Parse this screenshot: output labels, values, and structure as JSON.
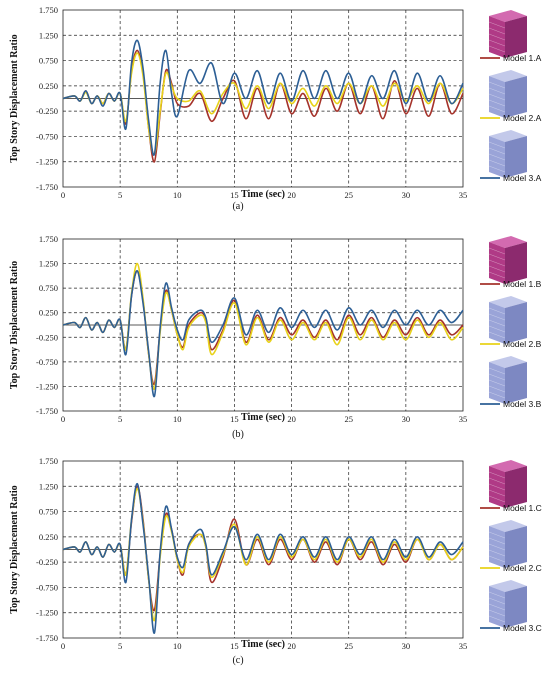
{
  "colors": {
    "model1": "#a5332b",
    "model2": "#e8d21a",
    "model3": "#2d5f95"
  },
  "chart_data": [
    {
      "type": "line",
      "panel": "(a)",
      "xlabel": "Time (sec)",
      "ylabel": "Top Story Displacement Ratio",
      "xlim": [
        0,
        35
      ],
      "ylim": [
        -1.75,
        1.75
      ],
      "xticks": [
        0,
        5,
        10,
        15,
        20,
        25,
        30,
        35
      ],
      "yticks": [
        "1.750",
        "1.250",
        "0.750",
        "0.250",
        "-0.250",
        "-0.750",
        "-1.250",
        "-1.750"
      ],
      "grid": true,
      "series": [
        {
          "name": "Model 1.A",
          "x": [
            0,
            1,
            1.5,
            2,
            2.5,
            3,
            3.5,
            4,
            4.5,
            5,
            5.5,
            6,
            6.5,
            7,
            7.5,
            8,
            8.5,
            9,
            9.5,
            10,
            11,
            12,
            13,
            14,
            15,
            16,
            17,
            18,
            19,
            20,
            21,
            22,
            23,
            24,
            25,
            26,
            27,
            28,
            29,
            30,
            31,
            32,
            33,
            34,
            35
          ],
          "values": [
            0,
            0.05,
            -0.05,
            0.15,
            -0.1,
            0.05,
            -0.1,
            0.1,
            -0.05,
            0.1,
            -0.5,
            0.55,
            0.95,
            0.5,
            -0.6,
            -1.25,
            -0.3,
            0.55,
            0.3,
            -0.1,
            -0.15,
            0.1,
            -0.45,
            0.0,
            0.35,
            -0.4,
            0.2,
            -0.4,
            0.3,
            -0.3,
            0.1,
            -0.35,
            0.2,
            -0.25,
            0.3,
            -0.3,
            0.25,
            -0.4,
            0.35,
            -0.3,
            0.2,
            -0.35,
            0.3,
            -0.3,
            0.1
          ]
        },
        {
          "name": "Model 2.A",
          "x": [
            0,
            1,
            1.5,
            2,
            2.5,
            3,
            3.5,
            4,
            4.5,
            5,
            5.5,
            6,
            6.5,
            7,
            7.5,
            8,
            8.5,
            9,
            9.5,
            10,
            11,
            12,
            13,
            14,
            15,
            16,
            17,
            18,
            19,
            20,
            21,
            22,
            23,
            24,
            25,
            26,
            27,
            28,
            29,
            30,
            31,
            32,
            33,
            34,
            35
          ],
          "values": [
            0,
            0.05,
            -0.05,
            0.12,
            -0.1,
            0.05,
            -0.1,
            0.1,
            -0.05,
            0.1,
            -0.45,
            0.5,
            0.9,
            0.45,
            -0.6,
            -1.1,
            -0.25,
            0.5,
            0.25,
            0.0,
            -0.05,
            0.15,
            -0.3,
            0.1,
            0.3,
            -0.2,
            0.25,
            -0.2,
            0.3,
            -0.1,
            0.2,
            -0.15,
            0.25,
            -0.1,
            0.3,
            -0.1,
            0.25,
            -0.15,
            0.3,
            -0.05,
            0.25,
            -0.1,
            0.3,
            -0.1,
            0.2
          ]
        },
        {
          "name": "Model 3.A",
          "x": [
            0,
            1,
            1.5,
            2,
            2.5,
            3,
            3.5,
            4,
            4.5,
            5,
            5.5,
            6,
            6.5,
            7,
            7.5,
            8,
            8.5,
            9,
            9.5,
            10,
            11,
            12,
            13,
            14,
            15,
            16,
            17,
            18,
            19,
            20,
            21,
            22,
            23,
            24,
            25,
            26,
            27,
            28,
            29,
            30,
            31,
            32,
            33,
            34,
            35
          ],
          "values": [
            0,
            0.05,
            -0.05,
            0.15,
            -0.1,
            0.05,
            -0.15,
            0.1,
            -0.05,
            0.1,
            -0.6,
            0.7,
            1.15,
            0.6,
            -0.45,
            -1.1,
            0.3,
            0.95,
            0.1,
            -0.35,
            0.55,
            0.3,
            0.7,
            -0.1,
            0.5,
            0.0,
            0.55,
            -0.1,
            0.5,
            -0.05,
            0.55,
            0.0,
            0.55,
            0.0,
            0.5,
            -0.1,
            0.45,
            0.0,
            0.55,
            -0.1,
            0.5,
            -0.05,
            0.45,
            -0.1,
            0.3
          ]
        }
      ]
    },
    {
      "type": "line",
      "panel": "(b)",
      "xlabel": "Time (sec)",
      "ylabel": "Top Story Displacement Ratio",
      "xlim": [
        0,
        35
      ],
      "ylim": [
        -1.75,
        1.75
      ],
      "xticks": [
        0,
        5,
        10,
        15,
        20,
        25,
        30,
        35
      ],
      "yticks": [
        "1.750",
        "1.250",
        "0.750",
        "0.250",
        "-0.250",
        "-0.750",
        "-1.250",
        "-1.750"
      ],
      "grid": true,
      "series": [
        {
          "name": "Model 1.B",
          "x": [
            0,
            1,
            1.5,
            2,
            2.5,
            3,
            3.5,
            4,
            4.5,
            5,
            5.5,
            6,
            6.5,
            7,
            7.5,
            8,
            8.5,
            9,
            9.5,
            10,
            10.5,
            11,
            12,
            12.5,
            13,
            14,
            15,
            16,
            17,
            18,
            19,
            20,
            21,
            22,
            23,
            24,
            25,
            26,
            27,
            28,
            29,
            30,
            31,
            32,
            33,
            34,
            35
          ],
          "values": [
            0,
            0.05,
            -0.05,
            0.15,
            -0.1,
            0.05,
            -0.15,
            0.1,
            -0.05,
            0.1,
            -0.5,
            0.6,
            1.1,
            0.5,
            -0.6,
            -1.2,
            -0.1,
            0.7,
            0.3,
            -0.2,
            -0.45,
            0.0,
            0.25,
            0.1,
            -0.5,
            -0.1,
            0.5,
            -0.35,
            0.2,
            -0.3,
            0.15,
            -0.2,
            0.1,
            -0.25,
            0.1,
            -0.3,
            0.2,
            -0.2,
            0.15,
            -0.25,
            0.1,
            -0.2,
            0.15,
            -0.2,
            0.1,
            -0.2,
            0.0
          ]
        },
        {
          "name": "Model 2.B",
          "x": [
            0,
            1,
            1.5,
            2,
            2.5,
            3,
            3.5,
            4,
            4.5,
            5,
            5.5,
            6,
            6.5,
            7,
            7.5,
            8,
            8.5,
            9,
            9.5,
            10,
            10.5,
            11,
            12,
            12.5,
            13,
            14,
            15,
            16,
            17,
            18,
            19,
            20,
            21,
            22,
            23,
            24,
            25,
            26,
            27,
            28,
            29,
            30,
            31,
            32,
            33,
            34,
            35
          ],
          "values": [
            0,
            0.05,
            -0.05,
            0.15,
            -0.1,
            0.05,
            -0.15,
            0.1,
            -0.05,
            0.1,
            -0.5,
            0.65,
            1.25,
            0.55,
            -0.6,
            -1.3,
            -0.15,
            0.65,
            0.3,
            -0.2,
            -0.5,
            -0.05,
            0.2,
            0.05,
            -0.6,
            -0.15,
            0.45,
            -0.4,
            0.15,
            -0.35,
            0.1,
            -0.3,
            0.05,
            -0.3,
            0.05,
            -0.4,
            0.15,
            -0.3,
            0.1,
            -0.3,
            0.05,
            -0.3,
            0.1,
            -0.25,
            0.05,
            -0.3,
            -0.05
          ]
        },
        {
          "name": "Model 3.B",
          "x": [
            0,
            1,
            1.5,
            2,
            2.5,
            3,
            3.5,
            4,
            4.5,
            5,
            5.5,
            6,
            6.5,
            7,
            7.5,
            8,
            8.5,
            9,
            9.5,
            10,
            10.5,
            11,
            12,
            12.5,
            13,
            14,
            15,
            16,
            17,
            18,
            19,
            20,
            21,
            22,
            23,
            24,
            25,
            26,
            27,
            28,
            29,
            30,
            31,
            32,
            33,
            34,
            35
          ],
          "values": [
            0,
            0.05,
            -0.05,
            0.15,
            -0.1,
            0.05,
            -0.15,
            0.1,
            -0.05,
            0.1,
            -0.6,
            0.6,
            1.1,
            0.45,
            -0.55,
            -1.45,
            -0.05,
            0.85,
            0.35,
            -0.1,
            -0.3,
            0.1,
            0.3,
            0.15,
            -0.35,
            0.0,
            0.55,
            -0.2,
            0.3,
            -0.15,
            0.35,
            -0.05,
            0.3,
            -0.05,
            0.3,
            -0.1,
            0.35,
            0.0,
            0.3,
            -0.05,
            0.3,
            0.0,
            0.3,
            0.0,
            0.3,
            0.05,
            0.3
          ]
        }
      ]
    },
    {
      "type": "line",
      "panel": "(c)",
      "xlabel": "Time (sec)",
      "ylabel": "Top Story Displacement Ratio",
      "xlim": [
        0,
        35
      ],
      "ylim": [
        -1.75,
        1.75
      ],
      "xticks": [
        0,
        5,
        10,
        15,
        20,
        25,
        30,
        35
      ],
      "yticks": [
        "1.750",
        "1.250",
        "0.750",
        "0.250",
        "-0.250",
        "-0.750",
        "-1.250",
        "-1.750"
      ],
      "grid": true,
      "series": [
        {
          "name": "Model 1.C",
          "x": [
            0,
            1,
            1.5,
            2,
            2.5,
            3,
            3.5,
            4,
            4.5,
            5,
            5.5,
            6,
            6.5,
            7,
            7.5,
            8,
            8.5,
            9,
            9.5,
            10,
            10.5,
            11,
            12,
            12.5,
            13,
            14,
            15,
            16,
            17,
            18,
            19,
            20,
            21,
            22,
            23,
            24,
            25,
            26,
            27,
            28,
            29,
            30,
            31,
            32,
            33,
            34,
            35
          ],
          "values": [
            0,
            0.05,
            -0.05,
            0.15,
            -0.1,
            0.05,
            -0.15,
            0.1,
            -0.05,
            0.1,
            -0.5,
            0.55,
            1.25,
            0.6,
            -0.6,
            -1.2,
            -0.1,
            0.7,
            0.4,
            -0.2,
            -0.5,
            0.1,
            0.3,
            0.05,
            -0.65,
            -0.15,
            0.6,
            -0.3,
            0.2,
            -0.3,
            0.2,
            -0.2,
            0.2,
            -0.25,
            0.15,
            -0.3,
            0.2,
            -0.2,
            0.15,
            -0.3,
            0.1,
            -0.25,
            0.2,
            -0.2,
            0.1,
            -0.2,
            0.05
          ]
        },
        {
          "name": "Model 2.C",
          "x": [
            0,
            1,
            1.5,
            2,
            2.5,
            3,
            3.5,
            4,
            4.5,
            5,
            5.5,
            6,
            6.5,
            7,
            7.5,
            8,
            8.5,
            9,
            9.5,
            10,
            10.5,
            11,
            12,
            12.5,
            13,
            14,
            15,
            16,
            17,
            18,
            19,
            20,
            21,
            22,
            23,
            24,
            25,
            26,
            27,
            28,
            29,
            30,
            31,
            32,
            33,
            34,
            35
          ],
          "values": [
            0,
            0.05,
            -0.05,
            0.15,
            -0.1,
            0.05,
            -0.15,
            0.1,
            -0.05,
            0.1,
            -0.5,
            0.6,
            1.2,
            0.55,
            -0.6,
            -1.4,
            -0.15,
            0.65,
            0.35,
            -0.2,
            -0.45,
            0.05,
            0.3,
            0.05,
            -0.55,
            -0.1,
            0.5,
            -0.3,
            0.25,
            -0.25,
            0.25,
            -0.15,
            0.2,
            -0.2,
            0.2,
            -0.25,
            0.2,
            -0.15,
            0.2,
            -0.25,
            0.15,
            -0.2,
            0.2,
            -0.2,
            0.1,
            -0.2,
            0.05
          ]
        },
        {
          "name": "Model 3.C",
          "x": [
            0,
            1,
            1.5,
            2,
            2.5,
            3,
            3.5,
            4,
            4.5,
            5,
            5.5,
            6,
            6.5,
            7,
            7.5,
            8,
            8.5,
            9,
            9.5,
            10,
            10.5,
            11,
            12,
            12.5,
            13,
            14,
            15,
            16,
            17,
            18,
            19,
            20,
            21,
            22,
            23,
            24,
            25,
            26,
            27,
            28,
            29,
            30,
            31,
            32,
            33,
            34,
            35
          ],
          "values": [
            0,
            0.05,
            -0.05,
            0.15,
            -0.1,
            0.05,
            -0.15,
            0.1,
            -0.05,
            0.1,
            -0.65,
            0.6,
            1.3,
            0.5,
            -0.55,
            -1.65,
            -0.05,
            0.85,
            0.4,
            -0.15,
            -0.35,
            0.1,
            0.4,
            0.1,
            -0.5,
            -0.05,
            0.45,
            -0.2,
            0.3,
            -0.2,
            0.3,
            -0.1,
            0.25,
            -0.15,
            0.25,
            -0.2,
            0.25,
            -0.1,
            0.25,
            -0.2,
            0.2,
            -0.15,
            0.25,
            -0.15,
            0.15,
            -0.1,
            0.15
          ]
        }
      ]
    }
  ]
}
